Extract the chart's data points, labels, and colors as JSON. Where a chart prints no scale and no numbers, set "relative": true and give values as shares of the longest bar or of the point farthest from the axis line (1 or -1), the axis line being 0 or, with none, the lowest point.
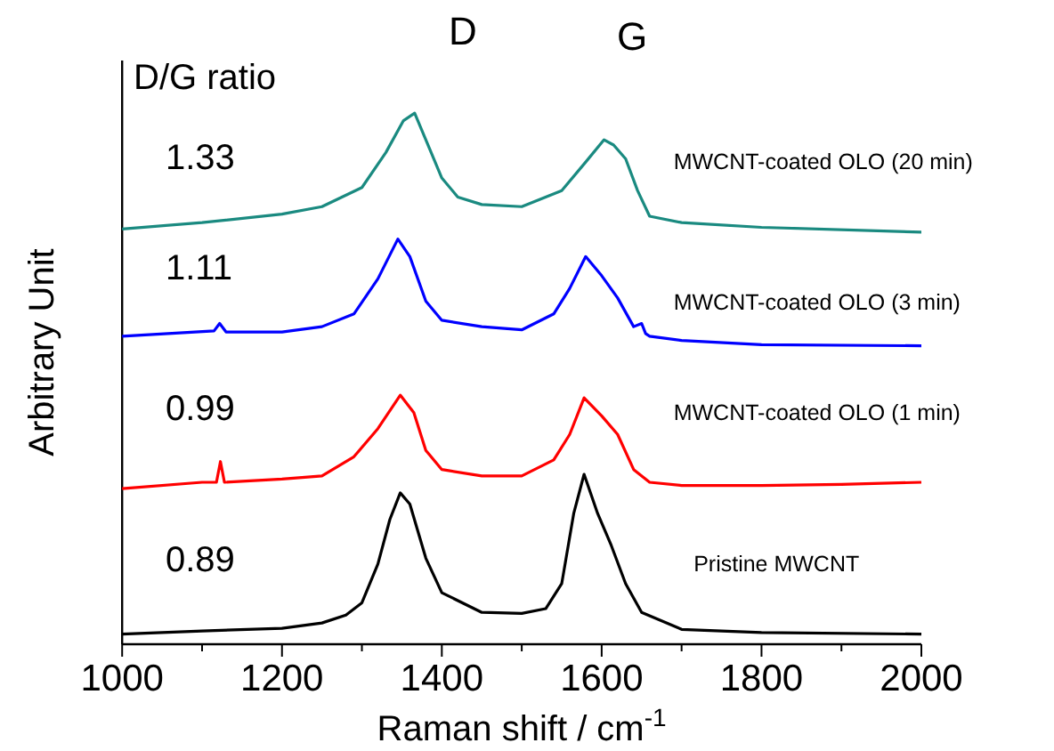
{
  "chart_data": {
    "type": "line",
    "relative": true,
    "xlabel": "Raman shift / cm$^{-1}$",
    "ylabel": "Arbitrary Unit",
    "xlim": [
      1000,
      2000
    ],
    "xticks": [
      1000,
      {
        "value": 1100,
        "label": null
      },
      1200,
      {
        "value": 1300,
        "label": null
      },
      1400,
      {
        "value": 1500,
        "label": null
      },
      1600,
      {
        "value": 1700,
        "label": null
      },
      1800,
      {
        "value": 1900,
        "label": null
      },
      2000
    ],
    "annotations": [
      "D/G ratio",
      "D",
      "G",
      "1.33",
      "1.11",
      "0.99",
      "0.89"
    ],
    "grid": false,
    "legend": false,
    "marker": "none",
    "line_style": "solid",
    "series": [
      {
        "name": "MWCNT-coated OLO (20 min)",
        "color": "#1a8a80",
        "x": [
          1000,
          1100,
          1200,
          1250,
          1300,
          1330,
          1352,
          1366,
          1380,
          1400,
          1420,
          1450,
          1500,
          1550,
          1580,
          1603,
          1615,
          1630,
          1645,
          1660,
          1700,
          1800,
          2000
        ],
        "values": [
          0.782,
          0.794,
          0.81,
          0.824,
          0.86,
          0.926,
          0.986,
          1.0,
          0.95,
          0.878,
          0.842,
          0.828,
          0.824,
          0.854,
          0.908,
          0.95,
          0.94,
          0.914,
          0.854,
          0.806,
          0.794,
          0.785,
          0.776
        ]
      },
      {
        "name": "MWCNT-coated OLO (3 min)",
        "color": "#0000ff",
        "x": [
          1000,
          1115,
          1122,
          1130,
          1200,
          1250,
          1290,
          1320,
          1345,
          1360,
          1380,
          1400,
          1450,
          1500,
          1540,
          1560,
          1580,
          1600,
          1620,
          1640,
          1650,
          1655,
          1660,
          1700,
          1800,
          2000
        ],
        "values": [
          0.58,
          0.59,
          0.604,
          0.588,
          0.588,
          0.598,
          0.622,
          0.688,
          0.763,
          0.73,
          0.646,
          0.61,
          0.598,
          0.592,
          0.622,
          0.67,
          0.73,
          0.694,
          0.652,
          0.598,
          0.604,
          0.585,
          0.58,
          0.572,
          0.564,
          0.562
        ]
      },
      {
        "name": "MWCNT-coated OLO (1 min)",
        "color": "#ff0000",
        "x": [
          1000,
          1100,
          1118,
          1123,
          1128,
          1200,
          1250,
          1290,
          1320,
          1348,
          1365,
          1380,
          1400,
          1450,
          1500,
          1540,
          1560,
          1578,
          1600,
          1620,
          1640,
          1660,
          1700,
          1800,
          1900,
          2000
        ],
        "values": [
          0.293,
          0.305,
          0.305,
          0.344,
          0.305,
          0.311,
          0.317,
          0.353,
          0.406,
          0.469,
          0.436,
          0.365,
          0.329,
          0.317,
          0.317,
          0.347,
          0.395,
          0.464,
          0.43,
          0.395,
          0.329,
          0.305,
          0.299,
          0.299,
          0.301,
          0.305
        ]
      },
      {
        "name": "Pristine MWCNT",
        "color": "#000000",
        "x": [
          1000,
          1100,
          1200,
          1250,
          1280,
          1300,
          1320,
          1335,
          1348,
          1360,
          1380,
          1400,
          1450,
          1500,
          1530,
          1550,
          1565,
          1578,
          1595,
          1612,
          1630,
          1650,
          1700,
          1800,
          2000
        ],
        "values": [
          0.019,
          0.025,
          0.03,
          0.04,
          0.055,
          0.078,
          0.151,
          0.235,
          0.285,
          0.264,
          0.162,
          0.097,
          0.06,
          0.058,
          0.067,
          0.114,
          0.246,
          0.32,
          0.246,
          0.186,
          0.114,
          0.06,
          0.028,
          0.022,
          0.019
        ]
      }
    ]
  }
}
